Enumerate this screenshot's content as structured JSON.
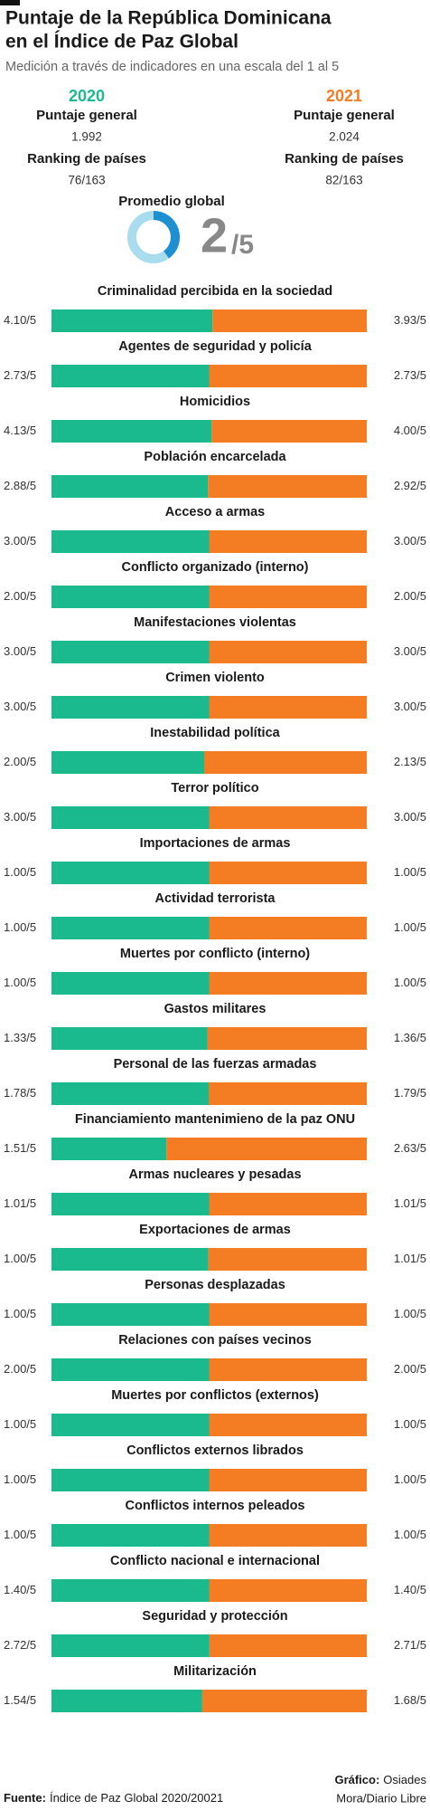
{
  "header": {
    "title_lines": [
      "Puntaje de la República Dominicana",
      "en el Índice de Paz Global"
    ],
    "subtitle": "Medición a través de indicadores en una escala del 1 al 5"
  },
  "summary": {
    "score_label": "Puntaje  general",
    "ranking_label": "Ranking de países",
    "years": [
      {
        "score": "1.992",
        "ranking": "76/163"
      },
      {
        "score": "2.024",
        "ranking": "82/163"
      }
    ],
    "global_average": {
      "label": "Promedio global",
      "value": 2,
      "max": 5,
      "scale_label": "/5",
      "color": "#1e8fd0",
      "track_color": "#a9dcef"
    }
  },
  "chart_data": {
    "type": "split-bar",
    "categories": [
      "Criminalidad percibida en la sociedad",
      "Agentes de seguridad y policía",
      "Homicidios",
      "Población encarcelada",
      "Acceso a armas",
      "Conflicto organizado (interno)",
      "Manifestaciones violentas",
      "Crimen violento",
      "Inestabilidad política",
      "Terror político",
      "Importaciones de armas",
      "Actividad terrorista",
      "Muertes por conflicto (interno)",
      "Gastos militares",
      "Personal de las fuerzas armadas",
      "Financiamiento mantenimieno de la paz ONU",
      "Armas nucleares y pesadas",
      "Exportaciones de armas",
      "Personas desplazadas",
      "Relaciones con países vecinos",
      "Muertes por conflictos (externos)",
      "Conflictos externos librados",
      "Conflictos internos peleados",
      "Conflicto nacional e internacional",
      "Seguridad y protección",
      "Militarización"
    ],
    "series": [
      {
        "name": "2020",
        "color": "#1ab98e",
        "values": [
          4.1,
          2.73,
          4.13,
          2.88,
          3,
          2,
          3,
          3,
          2,
          3,
          1,
          1,
          1,
          1.33,
          1.78,
          1.51,
          1.01,
          1,
          1,
          2,
          1,
          1,
          1,
          1.4,
          2.72,
          1.54
        ],
        "value_labels": [
          "4.10/5",
          "2.73/5",
          "4.13/5",
          "2.88/5",
          "3.00/5",
          "2.00/5",
          "3.00/5",
          "3.00/5",
          "2.00/5",
          "3.00/5",
          "1.00/5",
          "1.00/5",
          "1.00/5",
          "1.33/5",
          "1.78/5",
          "1.51/5",
          "1.01/5",
          "1.00/5",
          "1.00/5",
          "2.00/5",
          "1.00/5",
          "1.00/5",
          "1.00/5",
          "1.40/5",
          "2.72/5",
          "1.54/5"
        ]
      },
      {
        "name": "2021",
        "color": "#f47c22",
        "values": [
          3.93,
          2.73,
          4,
          2.92,
          3,
          2,
          3,
          3,
          2.13,
          3,
          1,
          1,
          1,
          1.36,
          1.79,
          2.63,
          1.01,
          1.01,
          1,
          2,
          1,
          1,
          1,
          1.4,
          2.71,
          1.68
        ],
        "value_labels": [
          "3.93/5",
          "2.73/5",
          "4.00/5",
          "2.92/5",
          "3.00/5",
          "2.00/5",
          "3.00/5",
          "3.00/5",
          "2.13/5",
          "3.00/5",
          "1.00/5",
          "1.00/5",
          "1.00/5",
          "1.36/5",
          "1.79/5",
          "2.63/5",
          "1.01/5",
          "1.01/5",
          "1.00/5",
          "2.00/5",
          "1.00/5",
          "1.00/5",
          "1.00/5",
          "1.40/5",
          "2.71/5",
          "1.68/5"
        ]
      }
    ]
  },
  "footer": {
    "source_label": "Fuente:",
    "source": "Índice de Paz Global 2020/20021",
    "credit_label": "Gráfico:",
    "credit_lines": [
      "Osiades",
      "Mora/Diario Libre"
    ]
  }
}
